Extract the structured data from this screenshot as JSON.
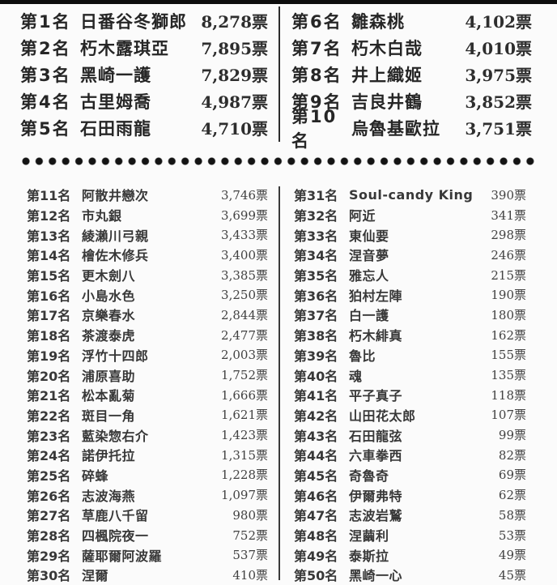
{
  "top_ranking": {
    "left": [
      {
        "rank": "第1名",
        "name": "日番谷冬獅郎",
        "votes": "8,278票"
      },
      {
        "rank": "第2名",
        "name": "朽木露琪亞",
        "votes": "7,895票"
      },
      {
        "rank": "第3名",
        "name": "黑崎一護",
        "votes": "7,829票"
      },
      {
        "rank": "第4名",
        "name": "古里姆喬",
        "votes": "4,987票"
      },
      {
        "rank": "第5名",
        "name": "石田雨龍",
        "votes": "4,710票"
      }
    ],
    "right": [
      {
        "rank": "第6名",
        "name": "雛森桃",
        "votes": "4,102票"
      },
      {
        "rank": "第7名",
        "name": "朽木白哉",
        "votes": "4,010票"
      },
      {
        "rank": "第8名",
        "name": "井上織姬",
        "votes": "3,975票"
      },
      {
        "rank": "第9名",
        "name": "吉良井鶴",
        "votes": "3,852票"
      },
      {
        "rank": "第10名",
        "name": "烏魯基歐拉",
        "votes": "3,751票"
      }
    ]
  },
  "bottom_ranking": {
    "left": [
      {
        "rank": "第11名",
        "name": "阿散井戀次",
        "votes": "3,746票"
      },
      {
        "rank": "第12名",
        "name": "市丸銀",
        "votes": "3,699票"
      },
      {
        "rank": "第13名",
        "name": "綾瀨川弓親",
        "votes": "3,433票"
      },
      {
        "rank": "第14名",
        "name": "檜佐木修兵",
        "votes": "3,400票"
      },
      {
        "rank": "第15名",
        "name": "更木劍八",
        "votes": "3,385票"
      },
      {
        "rank": "第16名",
        "name": "小島水色",
        "votes": "3,250票"
      },
      {
        "rank": "第17名",
        "name": "京樂春水",
        "votes": "2,844票"
      },
      {
        "rank": "第18名",
        "name": "茶渡泰虎",
        "votes": "2,477票"
      },
      {
        "rank": "第19名",
        "name": "浮竹十四郎",
        "votes": "2,003票"
      },
      {
        "rank": "第20名",
        "name": "浦原喜助",
        "votes": "1,752票"
      },
      {
        "rank": "第21名",
        "name": "松本亂菊",
        "votes": "1,666票"
      },
      {
        "rank": "第22名",
        "name": "斑目一角",
        "votes": "1,621票"
      },
      {
        "rank": "第23名",
        "name": "藍染惣右介",
        "votes": "1,423票"
      },
      {
        "rank": "第24名",
        "name": "諾伊托拉",
        "votes": "1,315票"
      },
      {
        "rank": "第25名",
        "name": "碎蜂",
        "votes": "1,228票"
      },
      {
        "rank": "第26名",
        "name": "志波海燕",
        "votes": "1,097票"
      },
      {
        "rank": "第27名",
        "name": "草鹿八千留",
        "votes": "980票"
      },
      {
        "rank": "第28名",
        "name": "四楓院夜一",
        "votes": "752票"
      },
      {
        "rank": "第29名",
        "name": "薩耶爾阿波羅",
        "votes": "537票"
      },
      {
        "rank": "第30名",
        "name": "涅爾",
        "votes": "410票"
      }
    ],
    "right": [
      {
        "rank": "第31名",
        "name": "Soul-candy King",
        "votes": "390票"
      },
      {
        "rank": "第32名",
        "name": "阿近",
        "votes": "341票"
      },
      {
        "rank": "第33名",
        "name": "東仙要",
        "votes": "298票"
      },
      {
        "rank": "第34名",
        "name": "涅音夢",
        "votes": "246票"
      },
      {
        "rank": "第35名",
        "name": "雅忘人",
        "votes": "215票"
      },
      {
        "rank": "第36名",
        "name": "狛村左陣",
        "votes": "190票"
      },
      {
        "rank": "第37名",
        "name": "白一護",
        "votes": "180票"
      },
      {
        "rank": "第38名",
        "name": "朽木緋真",
        "votes": "162票"
      },
      {
        "rank": "第39名",
        "name": "魯比",
        "votes": "155票"
      },
      {
        "rank": "第40名",
        "name": "魂",
        "votes": "135票"
      },
      {
        "rank": "第41名",
        "name": "平子真子",
        "votes": "118票"
      },
      {
        "rank": "第42名",
        "name": "山田花太郎",
        "votes": "107票"
      },
      {
        "rank": "第43名",
        "name": "石田龍弦",
        "votes": "99票"
      },
      {
        "rank": "第44名",
        "name": "六車拳西",
        "votes": "82票"
      },
      {
        "rank": "第45名",
        "name": "奇魯奇",
        "votes": "69票"
      },
      {
        "rank": "第46名",
        "name": "伊爾弗特",
        "votes": "62票"
      },
      {
        "rank": "第47名",
        "name": "志波岩鷲",
        "votes": "58票"
      },
      {
        "rank": "第48名",
        "name": "涅繭利",
        "votes": "53票"
      },
      {
        "rank": "第49名",
        "name": "泰斯拉",
        "votes": "49票"
      },
      {
        "rank": "第50名",
        "name": "黑崎一心",
        "votes": "45票"
      }
    ]
  }
}
